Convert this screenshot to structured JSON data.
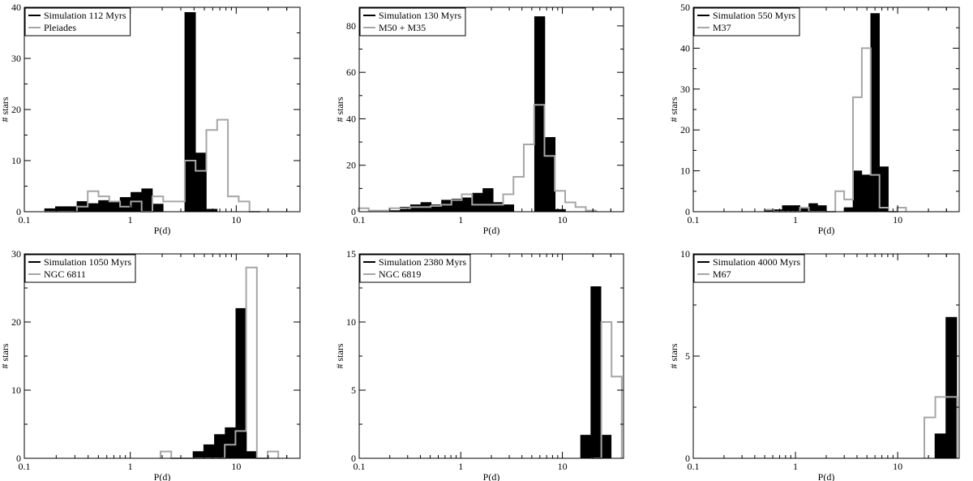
{
  "colors": {
    "simulation": "#000000",
    "observed": "#a6a6a6",
    "axes": "#000000",
    "background": "#ffffff"
  },
  "chart_data": [
    {
      "type": "histogram",
      "xlabel": "P(d)",
      "ylabel": "# stars",
      "xscale": "log",
      "xlim": [
        0.1,
        40
      ],
      "ylim": [
        0,
        40
      ],
      "yticks": [
        0,
        10,
        20,
        30,
        40
      ],
      "xtick_labels": [
        "0.1",
        "1",
        "10"
      ],
      "legend_position": "top-left",
      "bin_edges": [
        0.145,
        0.185,
        0.236,
        0.301,
        0.383,
        0.489,
        0.623,
        0.795,
        1.013,
        1.292,
        1.648,
        2.101,
        2.679,
        3.416,
        4.357,
        5.556,
        7.085,
        9.035
      ],
      "series": [
        {
          "name": "Simulation 112 Myrs",
          "style": "filled",
          "values": [
            0.6,
            1.0,
            1.0,
            2.0,
            1.6,
            2.2,
            1.9,
            2.8,
            3.8,
            4.5,
            1.5,
            0,
            0,
            39.0,
            11.5,
            0.5,
            0
          ]
        },
        {
          "name": "Pleiades",
          "style": "step",
          "values": [
            0,
            0,
            0,
            1.0,
            4.0,
            3.0,
            2.0,
            1.0,
            2.0,
            0,
            3.0,
            2.0,
            2.0,
            10.0,
            8.0,
            16.0,
            18.0,
            3.0,
            2.0,
            0
          ]
        }
      ]
    },
    {
      "type": "histogram",
      "xlabel": "P(d)",
      "ylabel": "# stars",
      "xscale": "log",
      "xlim": [
        0.1,
        40
      ],
      "ylim": [
        0,
        88
      ],
      "yticks": [
        0,
        20,
        40,
        60,
        80
      ],
      "xtick_labels": [
        "0.1",
        "1",
        "10"
      ],
      "legend_position": "top-left",
      "series": [
        {
          "name": "Simulation 130 Myrs",
          "style": "filled",
          "values": [
            0.5,
            0.5,
            2.0,
            3.0,
            4.0,
            3.0,
            5.0,
            5.5,
            6.0,
            8.0,
            10.0,
            4.0,
            3.0,
            0,
            0,
            84.0,
            32.0,
            1.0
          ]
        },
        {
          "name": "M50 + M35",
          "style": "step",
          "values": [
            1.5,
            0.5,
            0.5,
            1.5,
            1.5,
            2.0,
            2.0,
            2.5,
            3.0,
            5.0,
            7.5,
            3.0,
            3.0,
            3.0,
            7.5,
            15.0,
            29.0,
            46.0,
            24.0,
            9.0,
            4.0,
            2.0,
            0.5
          ]
        }
      ]
    },
    {
      "type": "histogram",
      "xlabel": "P(d)",
      "ylabel": "# stars",
      "xscale": "log",
      "xlim": [
        0.1,
        40
      ],
      "ylim": [
        0,
        50
      ],
      "yticks": [
        0,
        10,
        20,
        30,
        40,
        50
      ],
      "xtick_labels": [
        "0.1",
        "1",
        "10"
      ],
      "legend_position": "top-left",
      "series": [
        {
          "name": "Simulation 550 Myrs",
          "style": "filled",
          "values": [
            0.5,
            0.5,
            1.5,
            1.5,
            1.0,
            2.0,
            1.5,
            0,
            0,
            1.0,
            10.0,
            9.0,
            48.5,
            11.0
          ]
        },
        {
          "name": "M37",
          "style": "step",
          "values": [
            0.5,
            0,
            0,
            0,
            1.0,
            0,
            0,
            0,
            5.0,
            3.0,
            28.0,
            40.0,
            9.0,
            1.0,
            0,
            1.0
          ]
        }
      ]
    },
    {
      "type": "histogram",
      "xlabel": "P(d)",
      "ylabel": "# stars",
      "xscale": "log",
      "xlim": [
        0.1,
        40
      ],
      "ylim": [
        0,
        30
      ],
      "yticks": [
        0,
        10,
        20,
        30
      ],
      "xtick_labels": [
        "0.1",
        "1",
        "10"
      ],
      "legend_position": "top-left",
      "series": [
        {
          "name": "Simulation 1050 Myrs",
          "style": "filled",
          "values": [
            1.0,
            2.0,
            3.5,
            4.5,
            22.0,
            1.0
          ]
        },
        {
          "name": "NGC 6811",
          "style": "step",
          "values": [
            1.0,
            0,
            0,
            0,
            0,
            0,
            2.0,
            4.0,
            28.0,
            0,
            1.0
          ]
        }
      ]
    },
    {
      "type": "histogram",
      "xlabel": "P(d)",
      "ylabel": "# stars",
      "xscale": "log",
      "xlim": [
        0.1,
        40
      ],
      "ylim": [
        0,
        15
      ],
      "yticks": [
        0,
        5,
        10,
        15
      ],
      "xtick_labels": [
        "0.1",
        "1",
        "10"
      ],
      "legend_position": "top-left",
      "series": [
        {
          "name": "Simulation 2380 Myrs",
          "style": "filled",
          "values": [
            1.7,
            12.6,
            1.7
          ]
        },
        {
          "name": "NGC 6819",
          "style": "step",
          "values": [
            0,
            10.0,
            6.0
          ]
        }
      ]
    },
    {
      "type": "histogram",
      "xlabel": "P(d)",
      "ylabel": "# stars",
      "xscale": "log",
      "xlim": [
        0.1,
        40
      ],
      "ylim": [
        0,
        10
      ],
      "yticks": [
        0,
        5,
        10
      ],
      "xtick_labels": [
        "0.1",
        "1",
        "10"
      ],
      "legend_position": "top-left",
      "series": [
        {
          "name": "Simulation 4000 Myrs",
          "style": "filled",
          "values": [
            1.2,
            6.9
          ]
        },
        {
          "name": "M67",
          "style": "step",
          "values": [
            2.0,
            3.0,
            3.0
          ]
        }
      ]
    }
  ]
}
